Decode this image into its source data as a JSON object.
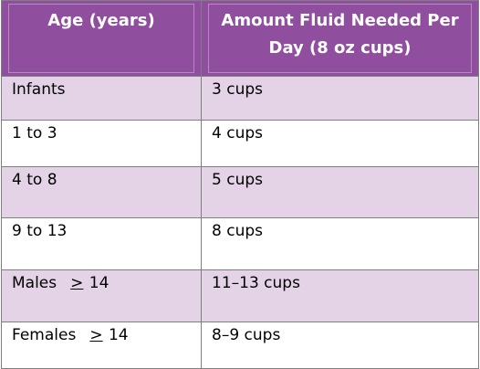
{
  "table": {
    "headers": [
      "Age (years)",
      "Amount Fluid Needed Per Day (8 oz cups)"
    ],
    "rows": [
      {
        "age": "Infants",
        "amount": "3 cups"
      },
      {
        "age": "1 to 3",
        "amount": "4 cups"
      },
      {
        "age": "4 to 8",
        "amount": "5 cups"
      },
      {
        "age": "9 to 13",
        "amount": "8 cups"
      },
      {
        "age_prefix": "Males",
        "age_op": ">",
        "age_value": "14",
        "amount": "11–13 cups"
      },
      {
        "age_prefix": "Females",
        "age_op": ">",
        "age_value": "14",
        "amount": "8–9 cups"
      }
    ]
  },
  "colors": {
    "header_bg": "#8f4e9e",
    "header_text": "#ffffff",
    "row_shade": "#e4d2e7",
    "row_plain": "#ffffff",
    "grid": "#7f7f7f"
  }
}
